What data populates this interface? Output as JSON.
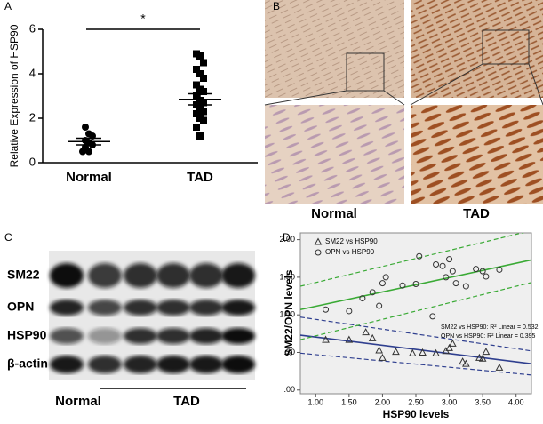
{
  "panel_labels": [
    "A",
    "B",
    "C",
    "D"
  ],
  "histology": {
    "labels": [
      "Normal",
      "TAD"
    ]
  },
  "blot": {
    "bands": [
      "SM22",
      "OPN",
      "HSP90",
      "β-actin"
    ],
    "groups": [
      "Normal",
      "TAD"
    ]
  },
  "chart_data": [
    {
      "type": "dot",
      "ylabel": "Relative Expression of HSP90",
      "categories": [
        "Normal",
        "TAD"
      ],
      "annotation": "*",
      "ylim": [
        0,
        6
      ],
      "yticks": [
        0,
        2,
        4,
        6
      ],
      "color": "#000000",
      "groups": [
        {
          "marker": "circle",
          "values": [
            1.6,
            1.3,
            1.2,
            1.0,
            0.9,
            0.8,
            0.7,
            0.5,
            0.5
          ],
          "mean": 0.95,
          "sem": 0.15
        },
        {
          "marker": "square",
          "values": [
            4.9,
            4.8,
            4.5,
            4.2,
            4.0,
            3.8,
            3.5,
            3.3,
            3.2,
            3.0,
            2.8,
            2.7,
            2.6,
            2.5,
            2.3,
            2.2,
            2.0,
            1.9,
            1.6,
            1.2
          ],
          "mean": 2.85,
          "sem": 0.25
        }
      ]
    },
    {
      "type": "scatter",
      "xlabel": "HSP90 levels",
      "ylabel": "SM22/OPN levels",
      "xlim": [
        0.77,
        4.23
      ],
      "ylim": [
        -0.05,
        2.09
      ],
      "xticks": [
        {
          "value": 1,
          "label": "1.00"
        },
        {
          "value": 1.5,
          "label": "1.50"
        },
        {
          "value": 2,
          "label": "2.00"
        },
        {
          "value": 2.5,
          "label": "2.50"
        },
        {
          "value": 3,
          "label": "3.00"
        },
        {
          "value": 3.5,
          "label": "3.50"
        },
        {
          "value": 4,
          "label": "4.00"
        }
      ],
      "yticks": [
        {
          "value": 0,
          "label": ".00"
        },
        {
          "value": 0.5,
          "label": ".50"
        },
        {
          "value": 1,
          "label": "1.00"
        },
        {
          "value": 1.5,
          "label": "1.50"
        },
        {
          "value": 2,
          "label": "2.00"
        }
      ],
      "background": "#efefef",
      "series": [
        {
          "name": "SM22 vs HSP90",
          "marker": "triangle",
          "color": "#2f3f8f",
          "x": [
            1.15,
            1.5,
            1.75,
            1.85,
            1.95,
            2.0,
            2.2,
            2.45,
            2.6,
            2.8,
            2.95,
            3.0,
            3.05,
            3.2,
            3.25,
            3.45,
            3.5,
            3.55,
            3.75
          ],
          "y": [
            0.67,
            0.67,
            0.77,
            0.69,
            0.53,
            0.43,
            0.51,
            0.49,
            0.5,
            0.49,
            0.52,
            0.56,
            0.62,
            0.38,
            0.35,
            0.43,
            0.42,
            0.51,
            0.3
          ],
          "fit": {
            "x": [
              0.77,
              4.23
            ],
            "y": [
              0.73,
              0.35
            ]
          },
          "ci_upper": {
            "x": [
              0.77,
              4.23
            ],
            "y": [
              0.97,
              0.52
            ]
          },
          "ci_lower": {
            "x": [
              0.77,
              4.23
            ],
            "y": [
              0.49,
              0.2
            ]
          },
          "annotation": "SM22 vs HSP90: R² Linear = 0.532"
        },
        {
          "name": "OPN vs HSP90",
          "marker": "circle",
          "color": "#3aaa35",
          "x": [
            1.15,
            1.5,
            1.7,
            1.85,
            1.95,
            2.0,
            2.05,
            2.3,
            2.5,
            2.55,
            2.75,
            2.8,
            2.9,
            2.95,
            3.0,
            3.05,
            3.1,
            3.25,
            3.4,
            3.5,
            3.55,
            3.75
          ],
          "y": [
            1.07,
            1.05,
            1.22,
            1.3,
            1.12,
            1.42,
            1.5,
            1.39,
            1.41,
            1.78,
            0.98,
            1.67,
            1.65,
            1.5,
            1.74,
            1.58,
            1.42,
            1.38,
            1.61,
            1.58,
            1.51,
            1.6
          ],
          "fit": {
            "x": [
              0.77,
              4.23
            ],
            "y": [
              1.07,
              1.73
            ]
          },
          "ci_upper": {
            "x": [
              0.77,
              4.23
            ],
            "y": [
              1.38,
              2.12
            ]
          },
          "ci_lower": {
            "x": [
              0.77,
              4.23
            ],
            "y": [
              0.67,
              1.43
            ]
          },
          "annotation": "OPN vs HSP90: R² Linear = 0.395"
        }
      ]
    }
  ]
}
